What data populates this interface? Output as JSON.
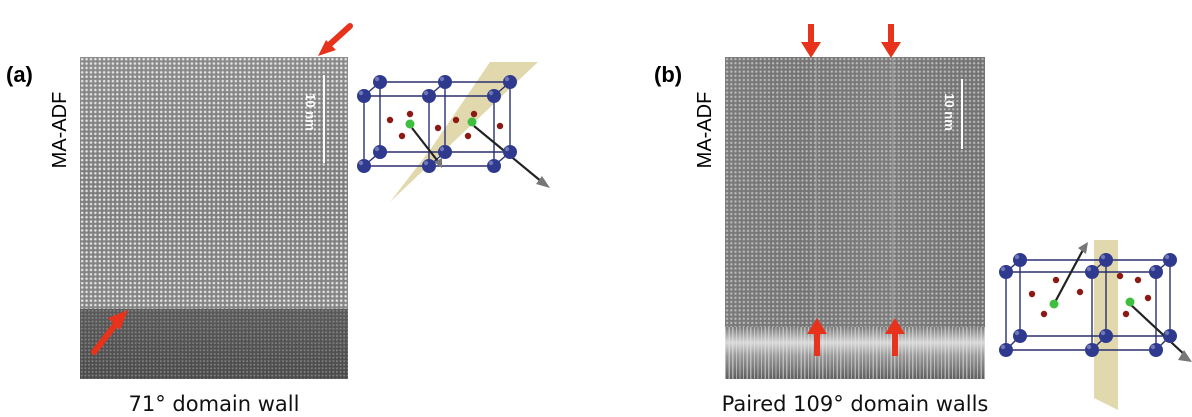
{
  "panel_a": {
    "label": "(a)",
    "side_label": "MA-ADF",
    "scale_bar": "10 nm",
    "caption": "71° domain wall"
  },
  "panel_b": {
    "label": "(b)",
    "side_label": "MA-ADF",
    "scale_bar": "10 nm",
    "caption": "Paired 109° domain walls"
  },
  "colors": {
    "arrow": "#e8331c",
    "atom_large": "#2f3a8f",
    "atom_small": "#8b1a14",
    "atom_green": "#3fbf3f",
    "plane": "#c8b96a"
  }
}
